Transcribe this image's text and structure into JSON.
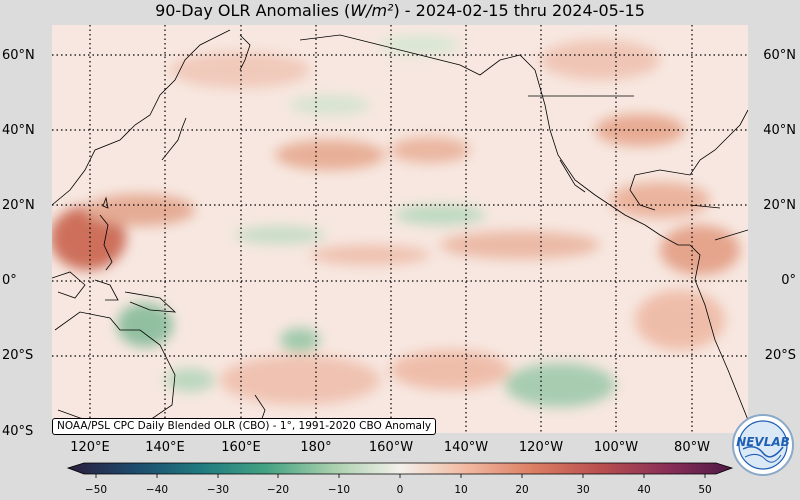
{
  "title": {
    "prefix": "90-Day OLR Anomalies (",
    "unit": "W/m²",
    "suffix": ") - 2024-02-15 thru 2024-05-15"
  },
  "map": {
    "projection": "equirectangular",
    "lon_range_deg_east": [
      100,
      292
    ],
    "lat_range": [
      -40,
      68
    ],
    "lat_labels": [
      "60°N",
      "40°N",
      "20°N",
      "0°",
      "20°S",
      "40°S"
    ],
    "lon_labels": [
      "120°E",
      "140°E",
      "160°E",
      "180°",
      "160°W",
      "140°W",
      "120°W",
      "100°W",
      "80°W"
    ],
    "gridlines": "dotted",
    "coastlines": true,
    "source_note": "NOAA/PSL CPC Daily Blended OLR (CBO) - 1°, 1991-2020 CBO Anomaly",
    "anomaly_features": [
      {
        "region": "Philippines / tropical western Pacific",
        "sign": "positive",
        "level": "strong"
      },
      {
        "region": "Maritime Continent / northern Australia",
        "sign": "negative",
        "level": "moderate"
      },
      {
        "region": "North central Pacific near 20°N",
        "sign": "negative",
        "level": "weak"
      },
      {
        "region": "Southeast Pacific near 25°S",
        "sign": "negative",
        "level": "moderate"
      },
      {
        "region": "North Pacific 30-40°N",
        "sign": "positive",
        "level": "moderate"
      },
      {
        "region": "Central America / Caribbean",
        "sign": "positive",
        "level": "moderate"
      }
    ]
  },
  "colorbar": {
    "ticks": [
      "−50",
      "−40",
      "−30",
      "−20",
      "−10",
      "0",
      "10",
      "20",
      "30",
      "40",
      "50"
    ],
    "colors": [
      "#2b1d3c",
      "#1e4a6c",
      "#1f7a80",
      "#45a383",
      "#a9d0ad",
      "#f3f0eb",
      "#f2b9a0",
      "#dc7e64",
      "#b9504f",
      "#8b2f57",
      "#4f1947"
    ],
    "colors_note": "ramp from −50 to +50"
  },
  "logo": {
    "text": "NEVLAB"
  }
}
